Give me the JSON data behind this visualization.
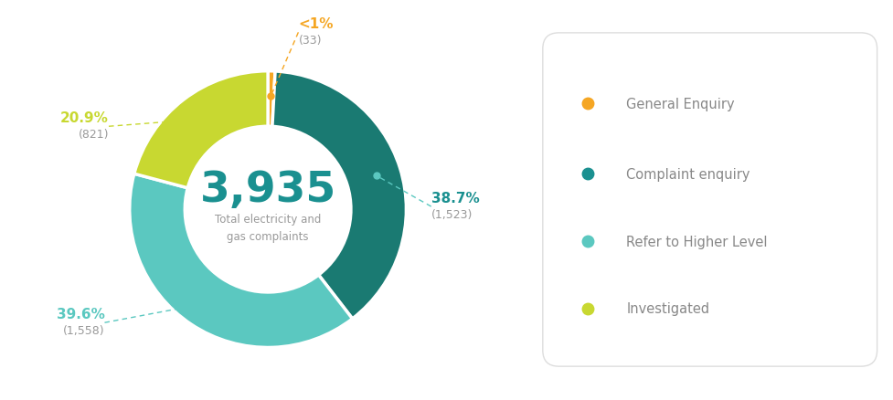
{
  "total": "3,935",
  "subtitle": "Total electricity and\ngas complaints",
  "segments": [
    {
      "label": "General Enquiry",
      "value": 33,
      "pct": "<1%",
      "color": "#F5A623",
      "text_color": "#F5A623"
    },
    {
      "label": "Complaint enquiry",
      "value": 1523,
      "pct": "38.7%",
      "color": "#1A7A72",
      "text_color": "#1A7A72"
    },
    {
      "label": "Refer to Higher Level",
      "value": 1558,
      "pct": "39.6%",
      "color": "#5BC8C0",
      "text_color": "#5BC8C0"
    },
    {
      "label": "Investigated",
      "value": 821,
      "pct": "20.9%",
      "color": "#C8D831",
      "text_color": "#C8D831"
    }
  ],
  "center_number_color": "#1A9090",
  "center_text_color": "#999999",
  "background_color": "#ffffff",
  "legend_box_facecolor": "#ffffff",
  "legend_box_edge": "#dddddd",
  "legend_text_color": "#888888",
  "pct_labels": [
    "<1%",
    "38.7%",
    "39.6%",
    "20.9%"
  ],
  "val_labels": [
    "(33)",
    "(1,523)",
    "(1,558)",
    "(821)"
  ],
  "pct_colors": [
    "#F5A623",
    "#1A9090",
    "#5BC8C0",
    "#C8D831"
  ],
  "line_colors": [
    "#F5A623",
    "#5BC8C0",
    "#5BC8C0",
    "#C8D831"
  ],
  "dot_colors": [
    "#F5A623",
    "#5BC8C0",
    "#5BC8C0",
    "#C8D831"
  ],
  "h_aligns": [
    "left",
    "left",
    "right",
    "right"
  ]
}
